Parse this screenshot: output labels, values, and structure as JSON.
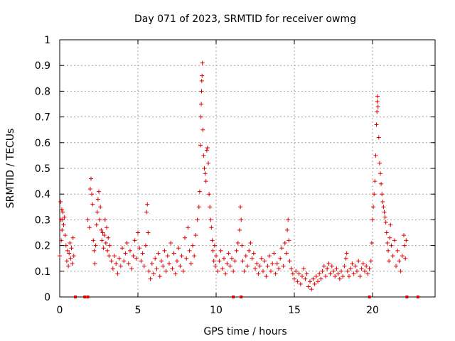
{
  "chart_data": {
    "type": "scatter",
    "title": "Day 071 of 2023, SRMTID for receiver owmg",
    "xlabel": "GPS time / hours",
    "ylabel": "SRMTID / TECUs",
    "xlim": [
      0,
      24
    ],
    "ylim": [
      0,
      1
    ],
    "xticks": [
      0,
      5,
      10,
      15,
      20
    ],
    "xtick_labels": [
      "0",
      "5",
      "10",
      "15",
      "20"
    ],
    "yticks": [
      0,
      0.1,
      0.2,
      0.3,
      0.4,
      0.5,
      0.6,
      0.7,
      0.8,
      0.9,
      1
    ],
    "ytick_labels": [
      "0",
      "0.1",
      "0.2",
      "0.3",
      "0.4",
      "0.5",
      "0.6",
      "0.7",
      "0.8",
      "0.9",
      "1"
    ],
    "grid": true,
    "marker": "+",
    "series_color": "#e00000",
    "series": [
      {
        "name": "SRMTID",
        "points": [
          [
            0.0,
            0.16
          ],
          [
            0.05,
            0.37
          ],
          [
            0.08,
            0.3
          ],
          [
            0.1,
            0.22
          ],
          [
            0.13,
            0.34
          ],
          [
            0.15,
            0.26
          ],
          [
            0.18,
            0.3
          ],
          [
            0.2,
            0.33
          ],
          [
            0.25,
            0.28
          ],
          [
            0.3,
            0.31
          ],
          [
            0.35,
            0.24
          ],
          [
            0.4,
            0.2
          ],
          [
            0.45,
            0.14
          ],
          [
            0.5,
            0.18
          ],
          [
            0.55,
            0.12
          ],
          [
            0.6,
            0.17
          ],
          [
            0.65,
            0.21
          ],
          [
            0.7,
            0.15
          ],
          [
            0.75,
            0.19
          ],
          [
            0.8,
            0.13
          ],
          [
            0.85,
            0.23
          ],
          [
            0.9,
            0.16
          ],
          [
            1.8,
            0.3
          ],
          [
            1.9,
            0.27
          ],
          [
            1.95,
            0.42
          ],
          [
            2.0,
            0.46
          ],
          [
            2.05,
            0.4
          ],
          [
            2.1,
            0.36
          ],
          [
            2.15,
            0.22
          ],
          [
            2.2,
            0.18
          ],
          [
            2.25,
            0.13
          ],
          [
            2.3,
            0.2
          ],
          [
            2.35,
            0.28
          ],
          [
            2.4,
            0.33
          ],
          [
            2.45,
            0.38
          ],
          [
            2.5,
            0.41
          ],
          [
            2.55,
            0.3
          ],
          [
            2.6,
            0.35
          ],
          [
            2.65,
            0.26
          ],
          [
            2.7,
            0.22
          ],
          [
            2.75,
            0.25
          ],
          [
            2.8,
            0.19
          ],
          [
            2.85,
            0.24
          ],
          [
            2.9,
            0.3
          ],
          [
            2.95,
            0.21
          ],
          [
            3.0,
            0.27
          ],
          [
            3.05,
            0.18
          ],
          [
            3.1,
            0.23
          ],
          [
            3.15,
            0.16
          ],
          [
            3.2,
            0.2
          ],
          [
            3.3,
            0.14
          ],
          [
            3.4,
            0.11
          ],
          [
            3.5,
            0.16
          ],
          [
            3.6,
            0.13
          ],
          [
            3.7,
            0.09
          ],
          [
            3.8,
            0.15
          ],
          [
            3.9,
            0.12
          ],
          [
            4.0,
            0.19
          ],
          [
            4.1,
            0.14
          ],
          [
            4.2,
            0.17
          ],
          [
            4.3,
            0.21
          ],
          [
            4.4,
            0.13
          ],
          [
            4.5,
            0.18
          ],
          [
            4.6,
            0.11
          ],
          [
            4.7,
            0.16
          ],
          [
            4.8,
            0.22
          ],
          [
            4.9,
            0.15
          ],
          [
            5.0,
            0.25
          ],
          [
            5.1,
            0.19
          ],
          [
            5.2,
            0.14
          ],
          [
            5.3,
            0.17
          ],
          [
            5.4,
            0.12
          ],
          [
            5.5,
            0.2
          ],
          [
            5.55,
            0.33
          ],
          [
            5.6,
            0.36
          ],
          [
            5.65,
            0.25
          ],
          [
            5.7,
            0.1
          ],
          [
            5.8,
            0.07
          ],
          [
            5.9,
            0.13
          ],
          [
            6.0,
            0.09
          ],
          [
            6.1,
            0.15
          ],
          [
            6.2,
            0.11
          ],
          [
            6.3,
            0.17
          ],
          [
            6.4,
            0.08
          ],
          [
            6.5,
            0.14
          ],
          [
            6.6,
            0.12
          ],
          [
            6.7,
            0.18
          ],
          [
            6.8,
            0.1
          ],
          [
            6.9,
            0.16
          ],
          [
            7.0,
            0.13
          ],
          [
            7.1,
            0.21
          ],
          [
            7.2,
            0.11
          ],
          [
            7.3,
            0.17
          ],
          [
            7.4,
            0.09
          ],
          [
            7.5,
            0.14
          ],
          [
            7.6,
            0.19
          ],
          [
            7.7,
            0.12
          ],
          [
            7.8,
            0.16
          ],
          [
            7.9,
            0.1
          ],
          [
            8.0,
            0.23
          ],
          [
            8.1,
            0.15
          ],
          [
            8.2,
            0.27
          ],
          [
            8.3,
            0.18
          ],
          [
            8.4,
            0.13
          ],
          [
            8.5,
            0.2
          ],
          [
            8.6,
            0.16
          ],
          [
            8.7,
            0.24
          ],
          [
            8.8,
            0.3
          ],
          [
            8.9,
            0.35
          ],
          [
            8.95,
            0.41
          ],
          [
            9.0,
            0.59
          ],
          [
            9.03,
            0.7
          ],
          [
            9.05,
            0.75
          ],
          [
            9.07,
            0.8
          ],
          [
            9.08,
            0.84
          ],
          [
            9.1,
            0.86
          ],
          [
            9.12,
            0.91
          ],
          [
            9.15,
            0.65
          ],
          [
            9.2,
            0.55
          ],
          [
            9.25,
            0.5
          ],
          [
            9.3,
            0.48
          ],
          [
            9.35,
            0.45
          ],
          [
            9.4,
            0.57
          ],
          [
            9.45,
            0.58
          ],
          [
            9.5,
            0.52
          ],
          [
            9.55,
            0.4
          ],
          [
            9.6,
            0.35
          ],
          [
            9.65,
            0.3
          ],
          [
            9.7,
            0.27
          ],
          [
            9.75,
            0.22
          ],
          [
            9.8,
            0.18
          ],
          [
            9.85,
            0.14
          ],
          [
            9.9,
            0.2
          ],
          [
            9.95,
            0.12
          ],
          [
            10.0,
            0.16
          ],
          [
            10.1,
            0.1
          ],
          [
            10.2,
            0.14
          ],
          [
            10.3,
            0.18
          ],
          [
            10.4,
            0.11
          ],
          [
            10.5,
            0.15
          ],
          [
            10.6,
            0.09
          ],
          [
            10.7,
            0.13
          ],
          [
            10.8,
            0.17
          ],
          [
            10.9,
            0.12
          ],
          [
            11.0,
            0.15
          ],
          [
            11.1,
            0.1
          ],
          [
            11.2,
            0.14
          ],
          [
            11.3,
            0.18
          ],
          [
            11.4,
            0.21
          ],
          [
            11.5,
            0.26
          ],
          [
            11.55,
            0.35
          ],
          [
            11.6,
            0.3
          ],
          [
            11.65,
            0.2
          ],
          [
            11.7,
            0.14
          ],
          [
            11.8,
            0.1
          ],
          [
            11.9,
            0.16
          ],
          [
            12.0,
            0.12
          ],
          [
            12.1,
            0.18
          ],
          [
            12.2,
            0.21
          ],
          [
            12.3,
            0.15
          ],
          [
            12.4,
            0.17
          ],
          [
            12.5,
            0.11
          ],
          [
            12.6,
            0.13
          ],
          [
            12.7,
            0.09
          ],
          [
            12.8,
            0.12
          ],
          [
            12.9,
            0.15
          ],
          [
            13.0,
            0.1
          ],
          [
            13.1,
            0.14
          ],
          [
            13.2,
            0.08
          ],
          [
            13.3,
            0.12
          ],
          [
            13.4,
            0.16
          ],
          [
            13.5,
            0.1
          ],
          [
            13.6,
            0.13
          ],
          [
            13.7,
            0.17
          ],
          [
            13.8,
            0.09
          ],
          [
            13.9,
            0.13
          ],
          [
            14.0,
            0.11
          ],
          [
            14.1,
            0.15
          ],
          [
            14.2,
            0.19
          ],
          [
            14.3,
            0.12
          ],
          [
            14.4,
            0.21
          ],
          [
            14.5,
            0.17
          ],
          [
            14.55,
            0.26
          ],
          [
            14.6,
            0.3
          ],
          [
            14.65,
            0.22
          ],
          [
            14.7,
            0.14
          ],
          [
            14.8,
            0.11
          ],
          [
            14.9,
            0.09
          ],
          [
            15.0,
            0.07
          ],
          [
            15.1,
            0.1
          ],
          [
            15.2,
            0.06
          ],
          [
            15.3,
            0.09
          ],
          [
            15.4,
            0.05
          ],
          [
            15.5,
            0.08
          ],
          [
            15.6,
            0.11
          ],
          [
            15.7,
            0.07
          ],
          [
            15.8,
            0.09
          ],
          [
            15.9,
            0.04
          ],
          [
            16.0,
            0.06
          ],
          [
            16.1,
            0.03
          ],
          [
            16.2,
            0.07
          ],
          [
            16.3,
            0.05
          ],
          [
            16.4,
            0.08
          ],
          [
            16.5,
            0.06
          ],
          [
            16.6,
            0.09
          ],
          [
            16.7,
            0.07
          ],
          [
            16.8,
            0.1
          ],
          [
            16.9,
            0.12
          ],
          [
            17.0,
            0.08
          ],
          [
            17.1,
            0.11
          ],
          [
            17.2,
            0.13
          ],
          [
            17.3,
            0.09
          ],
          [
            17.4,
            0.12
          ],
          [
            17.5,
            0.1
          ],
          [
            17.6,
            0.08
          ],
          [
            17.7,
            0.11
          ],
          [
            17.8,
            0.09
          ],
          [
            17.9,
            0.07
          ],
          [
            18.0,
            0.1
          ],
          [
            18.1,
            0.08
          ],
          [
            18.2,
            0.12
          ],
          [
            18.3,
            0.15
          ],
          [
            18.35,
            0.17
          ],
          [
            18.4,
            0.1
          ],
          [
            18.5,
            0.08
          ],
          [
            18.6,
            0.11
          ],
          [
            18.7,
            0.13
          ],
          [
            18.8,
            0.09
          ],
          [
            18.9,
            0.12
          ],
          [
            19.0,
            0.1
          ],
          [
            19.1,
            0.14
          ],
          [
            19.2,
            0.08
          ],
          [
            19.3,
            0.11
          ],
          [
            19.4,
            0.13
          ],
          [
            19.5,
            0.1
          ],
          [
            19.6,
            0.12
          ],
          [
            19.7,
            0.09
          ],
          [
            19.8,
            0.11
          ],
          [
            19.9,
            0.14
          ],
          [
            19.95,
            0.21
          ],
          [
            20.0,
            0.3
          ],
          [
            20.05,
            0.35
          ],
          [
            20.1,
            0.4
          ],
          [
            20.15,
            0.45
          ],
          [
            20.2,
            0.55
          ],
          [
            20.25,
            0.67
          ],
          [
            20.28,
            0.72
          ],
          [
            20.3,
            0.76
          ],
          [
            20.32,
            0.78
          ],
          [
            20.35,
            0.74
          ],
          [
            20.4,
            0.62
          ],
          [
            20.45,
            0.52
          ],
          [
            20.5,
            0.48
          ],
          [
            20.55,
            0.44
          ],
          [
            20.6,
            0.4
          ],
          [
            20.65,
            0.37
          ],
          [
            20.7,
            0.35
          ],
          [
            20.75,
            0.33
          ],
          [
            20.8,
            0.31
          ],
          [
            20.85,
            0.29
          ],
          [
            20.9,
            0.25
          ],
          [
            20.95,
            0.21
          ],
          [
            21.0,
            0.18
          ],
          [
            21.05,
            0.14
          ],
          [
            21.1,
            0.23
          ],
          [
            21.15,
            0.28
          ],
          [
            21.2,
            0.2
          ],
          [
            21.3,
            0.16
          ],
          [
            21.4,
            0.22
          ],
          [
            21.5,
            0.12
          ],
          [
            21.6,
            0.18
          ],
          [
            21.7,
            0.14
          ],
          [
            21.8,
            0.1
          ],
          [
            21.9,
            0.16
          ],
          [
            22.0,
            0.24
          ],
          [
            22.05,
            0.2
          ],
          [
            22.1,
            0.15
          ],
          [
            22.15,
            0.22
          ]
        ]
      }
    ],
    "zero_points_x": [
      1.0,
      1.6,
      1.8,
      11.1,
      11.6,
      19.8,
      22.2,
      22.9
    ]
  }
}
